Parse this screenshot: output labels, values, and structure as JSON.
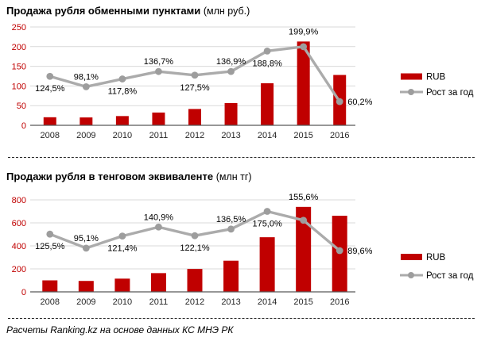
{
  "page": {
    "source_note": "Расчеты Ranking.kz на основе данных КС МНЭ РК"
  },
  "colors": {
    "bar": "#C00000",
    "line": "#ABABAB",
    "marker": "#9D9D9D",
    "grid": "#D9D9D9",
    "axis": "#595959",
    "ytick": "#C00000",
    "xlabel": "#262626",
    "datalabel": "#000000"
  },
  "chart_data": [
    {
      "type": "bar",
      "title": "Продажа рубля обменными пунктами",
      "unit": "(млн руб.)",
      "categories": [
        "2008",
        "2009",
        "2010",
        "2011",
        "2012",
        "2013",
        "2014",
        "2015",
        "2016"
      ],
      "series": [
        {
          "name": "RUB",
          "type": "bar",
          "values": [
            20.5,
            20,
            23.5,
            32.5,
            41.5,
            56.5,
            107,
            213,
            128
          ]
        },
        {
          "name": "Рост за год",
          "type": "line",
          "values_pct": [
            124.5,
            98.1,
            117.8,
            136.7,
            127.5,
            136.9,
            188.8,
            199.9,
            60.2
          ],
          "labels": [
            "124,5%",
            "98,1%",
            "117,8%",
            "136,7%",
            "127,5%",
            "136,9%",
            "188,8%",
            "199,9%",
            "60,2%"
          ],
          "label_placement": [
            "below",
            "above",
            "below",
            "above",
            "below",
            "above",
            "below",
            "above",
            "right"
          ]
        }
      ],
      "ylim": [
        0,
        250
      ],
      "yticks": [
        0,
        50,
        100,
        150,
        200,
        250
      ],
      "line_axis_max_pct": 250,
      "grid": true,
      "legend_position": "right",
      "legend": [
        "RUB",
        "Рост за год"
      ]
    },
    {
      "type": "bar",
      "title": "Продажи рубля в тенговом эквиваленте",
      "unit": "(млн тг)",
      "categories": [
        "2008",
        "2009",
        "2010",
        "2011",
        "2012",
        "2013",
        "2014",
        "2015",
        "2016"
      ],
      "series": [
        {
          "name": "RUB",
          "type": "bar",
          "values": [
            100,
            95,
            115,
            163,
            199,
            271,
            475,
            739,
            662
          ]
        },
        {
          "name": "Рост за год",
          "type": "line",
          "values_pct": [
            125.5,
            95.1,
            121.4,
            140.9,
            122.1,
            136.5,
            175.0,
            155.6,
            89.6
          ],
          "labels": [
            "125,5%",
            "95,1%",
            "121,4%",
            "140,9%",
            "122,1%",
            "136,5%",
            "175,0%",
            "155,6%",
            "89,6%"
          ],
          "label_placement": [
            "below",
            "above",
            "below",
            "above",
            "below",
            "above",
            "below",
            "above",
            "right"
          ]
        }
      ],
      "ylim": [
        0,
        800
      ],
      "yticks": [
        0,
        200,
        400,
        600,
        800
      ],
      "line_axis_max_pct": 200,
      "grid": true,
      "legend_position": "right",
      "legend": [
        "RUB",
        "Рост за год"
      ]
    }
  ]
}
